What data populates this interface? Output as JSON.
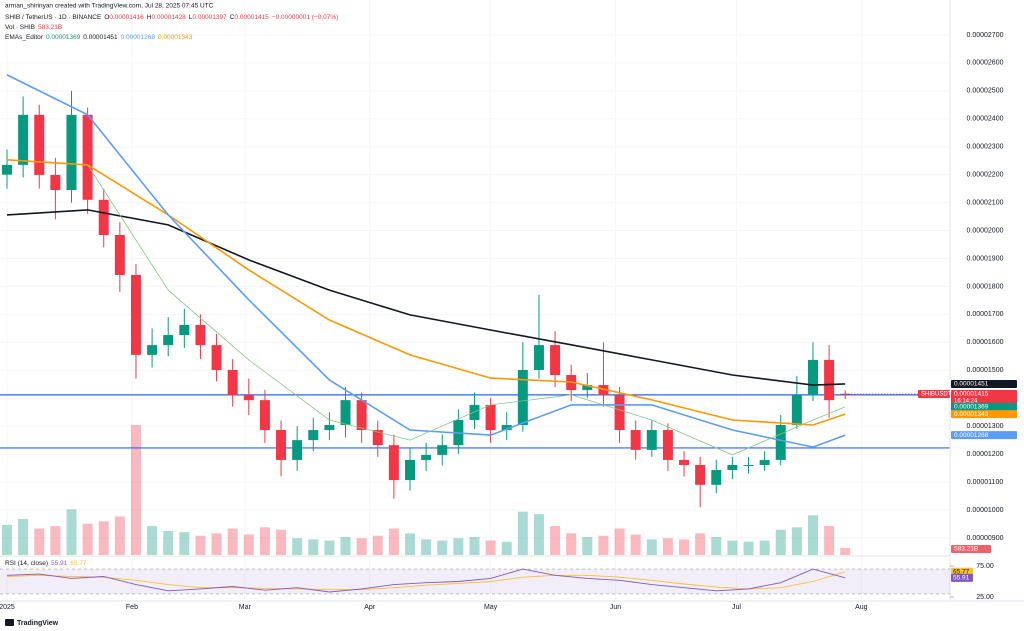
{
  "chart_data": {
    "type": "candlestick",
    "watermark_text": "arman_shirinyan created with TradingView.com, Jul 28, 2025 07:45 UTC",
    "symbol_line": "SHIB / TetherUS · 1D · BINANCE",
    "ohlc": [
      [
        "O",
        "0.00001416"
      ],
      [
        "H",
        "0.00001428"
      ],
      [
        "L",
        "0.00001397"
      ],
      [
        "C",
        "0.00001415"
      ]
    ],
    "change": "−0.00000001 (−0.07%)",
    "vol_label": "Vol · SHIB",
    "vol_value": "583.21B",
    "ema_label": "EMAs_Editor",
    "rsi_label": "RSI (14, close)",
    "footer": "TradingView",
    "up_color": "#089981",
    "down_color": "#f23645",
    "xlim": [
      -0.74,
      235
    ],
    "xticks": [
      {
        "value": 1,
        "label": "2025"
      },
      {
        "value": 32,
        "label": "Feb"
      },
      {
        "value": 60,
        "label": "Mar"
      },
      {
        "value": 91,
        "label": "Apr"
      },
      {
        "value": 121,
        "label": "May"
      },
      {
        "value": 152,
        "label": "Jun"
      },
      {
        "value": 182,
        "label": "Jul"
      },
      {
        "value": 213,
        "label": "Aug"
      }
    ],
    "ylim": [
      8.46e-06,
      2.825e-05
    ],
    "yticks": [
      {
        "value": 9e-06,
        "label": "0.00000900"
      },
      {
        "value": 1e-05,
        "label": "0.00001000"
      },
      {
        "value": 1.1e-05,
        "label": "0.00001100"
      },
      {
        "value": 1.2e-05,
        "label": "0.00001200"
      },
      {
        "value": 1.3e-05,
        "label": "0.00001300"
      },
      {
        "value": 1.4e-05,
        "label": "0.00001400"
      },
      {
        "value": 1.5e-05,
        "label": "0.00001500"
      },
      {
        "value": 1.6e-05,
        "label": "0.00001600"
      },
      {
        "value": 1.7e-05,
        "label": "0.00001700"
      },
      {
        "value": 1.8e-05,
        "label": "0.00001800"
      },
      {
        "value": 1.9e-05,
        "label": "0.00001900"
      },
      {
        "value": 2e-05,
        "label": "0.00002000"
      },
      {
        "value": 2.1e-05,
        "label": "0.00002100"
      },
      {
        "value": 2.2e-05,
        "label": "0.00002200"
      },
      {
        "value": 2.3e-05,
        "label": "0.00002300"
      },
      {
        "value": 2.4e-05,
        "label": "0.00002400"
      },
      {
        "value": 2.5e-05,
        "label": "0.00002500"
      },
      {
        "value": 2.6e-05,
        "label": "0.00002600"
      },
      {
        "value": 2.7e-05,
        "label": "0.00002700"
      }
    ],
    "x": [
      1,
      5,
      9,
      13,
      17,
      21,
      25,
      29,
      33,
      37,
      41,
      45,
      49,
      53,
      57,
      61,
      65,
      69,
      73,
      77,
      81,
      85,
      89,
      93,
      97,
      101,
      105,
      109,
      113,
      117,
      121,
      125,
      129,
      133,
      137,
      141,
      145,
      149,
      153,
      157,
      161,
      165,
      169,
      173,
      177,
      181,
      185,
      189,
      193,
      197,
      201,
      205,
      209
    ],
    "open": [
      2.2e-05,
      2.235e-05,
      2.414e-05,
      2.199e-05,
      2.145e-05,
      2.414e-05,
      2.11e-05,
      1.984e-05,
      1.841e-05,
      1.555e-05,
      1.59e-05,
      1.626e-05,
      1.662e-05,
      1.59e-05,
      1.501e-05,
      1.411e-05,
      1.393e-05,
      1.286e-05,
      1.179e-05,
      1.25e-05,
      1.286e-05,
      1.304e-05,
      1.393e-05,
      1.286e-05,
      1.232e-05,
      1.107e-05,
      1.179e-05,
      1.197e-05,
      1.232e-05,
      1.322e-05,
      1.376e-05,
      1.286e-05,
      1.304e-05,
      1.501e-05,
      1.59e-05,
      1.483e-05,
      1.429e-05,
      1.447e-05,
      1.411e-05,
      1.286e-05,
      1.215e-05,
      1.286e-05,
      1.179e-05,
      1.161e-05,
      1.09e-05,
      1.143e-05,
      1.161e-05,
      1.161e-05,
      1.179e-05,
      1.304e-05,
      1.411e-05,
      1.537e-05,
      1.416e-05
    ],
    "high": [
      2.29e-05,
      2.48e-05,
      2.45e-05,
      2.26e-05,
      2.5e-05,
      2.44e-05,
      2.15e-05,
      2.03e-05,
      1.88e-05,
      1.65e-05,
      1.69e-05,
      1.72e-05,
      1.7e-05,
      1.63e-05,
      1.54e-05,
      1.47e-05,
      1.43e-05,
      1.32e-05,
      1.3e-05,
      1.33e-05,
      1.35e-05,
      1.44e-05,
      1.42e-05,
      1.32e-05,
      1.27e-05,
      1.22e-05,
      1.24e-05,
      1.27e-05,
      1.36e-05,
      1.42e-05,
      1.4e-05,
      1.35e-05,
      1.6e-05,
      1.77e-05,
      1.64e-05,
      1.52e-05,
      1.49e-05,
      1.6e-05,
      1.44e-05,
      1.32e-05,
      1.32e-05,
      1.31e-05,
      1.21e-05,
      1.19e-05,
      1.18e-05,
      1.19e-05,
      1.19e-05,
      1.21e-05,
      1.34e-05,
      1.48e-05,
      1.6e-05,
      1.59e-05,
      1.428e-05
    ],
    "low": [
      2.15e-05,
      2.19e-05,
      2.15e-05,
      2.04e-05,
      2.1e-05,
      2.06e-05,
      1.94e-05,
      1.78e-05,
      1.47e-05,
      1.51e-05,
      1.55e-05,
      1.58e-05,
      1.54e-05,
      1.46e-05,
      1.37e-05,
      1.34e-05,
      1.24e-05,
      1.12e-05,
      1.14e-05,
      1.21e-05,
      1.25e-05,
      1.26e-05,
      1.24e-05,
      1.19e-05,
      1.04e-05,
      1.07e-05,
      1.14e-05,
      1.16e-05,
      1.2e-05,
      1.29e-05,
      1.24e-05,
      1.25e-05,
      1.28e-05,
      1.47e-05,
      1.44e-05,
      1.39e-05,
      1.4e-05,
      1.37e-05,
      1.24e-05,
      1.18e-05,
      1.19e-05,
      1.14e-05,
      1.12e-05,
      1.01e-05,
      1.06e-05,
      1.11e-05,
      1.13e-05,
      1.14e-05,
      1.16e-05,
      1.29e-05,
      1.39e-05,
      1.33e-05,
      1.397e-05
    ],
    "close": [
      2.235e-05,
      2.414e-05,
      2.199e-05,
      2.145e-05,
      2.414e-05,
      2.11e-05,
      1.984e-05,
      1.841e-05,
      1.555e-05,
      1.59e-05,
      1.626e-05,
      1.662e-05,
      1.59e-05,
      1.501e-05,
      1.411e-05,
      1.393e-05,
      1.286e-05,
      1.179e-05,
      1.25e-05,
      1.286e-05,
      1.304e-05,
      1.393e-05,
      1.286e-05,
      1.232e-05,
      1.107e-05,
      1.179e-05,
      1.197e-05,
      1.232e-05,
      1.322e-05,
      1.376e-05,
      1.286e-05,
      1.304e-05,
      1.501e-05,
      1.59e-05,
      1.483e-05,
      1.429e-05,
      1.447e-05,
      1.411e-05,
      1.286e-05,
      1.215e-05,
      1.286e-05,
      1.179e-05,
      1.161e-05,
      1.09e-05,
      1.143e-05,
      1.161e-05,
      1.161e-05,
      1.179e-05,
      1.304e-05,
      1.411e-05,
      1.537e-05,
      1.393e-05,
      1.415e-05
    ],
    "volume": [
      2500,
      3000,
      2200,
      2400,
      3800,
      2600,
      2800,
      3200,
      10800,
      2400,
      2000,
      1900,
      1600,
      1800,
      2200,
      1700,
      2300,
      2100,
      1400,
      1300,
      1200,
      1500,
      1400,
      1600,
      2200,
      1800,
      1300,
      1200,
      1400,
      1500,
      1200,
      1100,
      3600,
      3400,
      2400,
      1800,
      1500,
      1600,
      2200,
      1700,
      1300,
      1400,
      1300,
      1800,
      1500,
      1200,
      1100,
      1200,
      2100,
      2300,
      3300,
      2400,
      583.21
    ],
    "ema_series": [
      {
        "color": "#131722",
        "x": [
          1,
          21,
          41,
          61,
          81,
          101,
          121,
          141,
          161,
          181,
          201,
          209
        ],
        "values": [
          2.056e-05,
          2.074e-05,
          2.02e-05,
          1.895e-05,
          1.787e-05,
          1.698e-05,
          1.644e-05,
          1.591e-05,
          1.537e-05,
          1.483e-05,
          1.447e-05,
          1.451e-05
        ]
      },
      {
        "color": "#ff9800",
        "x": [
          1,
          21,
          41,
          61,
          81,
          101,
          121,
          141,
          161,
          181,
          201,
          209
        ],
        "values": [
          2.253e-05,
          2.235e-05,
          2.056e-05,
          1.859e-05,
          1.68e-05,
          1.555e-05,
          1.472e-05,
          1.458e-05,
          1.394e-05,
          1.322e-05,
          1.304e-05,
          1.343e-05
        ]
      },
      {
        "color": "#5b9cf6",
        "x": [
          1,
          21,
          41,
          61,
          81,
          101,
          121,
          141,
          161,
          181,
          201,
          209
        ],
        "values": [
          2.557e-05,
          2.414e-05,
          2.056e-05,
          1.752e-05,
          1.465e-05,
          1.286e-05,
          1.268e-05,
          1.376e-05,
          1.376e-05,
          1.286e-05,
          1.225e-05,
          1.268e-05
        ]
      },
      {
        "color": "#81c784",
        "x": [
          1,
          21,
          41,
          61,
          81,
          101,
          121,
          141,
          161,
          181,
          201,
          209
        ],
        "values": [
          null,
          2.235e-05,
          1.787e-05,
          1.537e-05,
          1.322e-05,
          1.25e-05,
          1.376e-05,
          1.412e-05,
          1.322e-05,
          1.197e-05,
          1.322e-05,
          1.369e-05
        ]
      }
    ],
    "hlines": [
      {
        "value": 1.412e-05,
        "color": "#2962ff"
      },
      {
        "value": 1.222e-05,
        "color": "#2962ff"
      }
    ],
    "symbol_tag": "SHIBUSDT",
    "countdown": "16:14:24",
    "badges": [
      {
        "value": 1.451e-05,
        "label": "0.00001451",
        "color": "#131722"
      },
      {
        "value": 1.415e-05,
        "label": "0.00001415",
        "color": "#f23645"
      },
      {
        "value": 1.369e-05,
        "label": "0.00001369",
        "color": "#089981"
      },
      {
        "value": 1.343e-05,
        "label": "0.00001343",
        "color": "#ff9800"
      },
      {
        "value": 1.268e-05,
        "label": "0.00001268",
        "color": "#5b9cf6"
      }
    ],
    "volume_badge": "583.21B",
    "rsi": {
      "ylim": [
        25,
        75
      ],
      "yticks": [
        {
          "value": 75,
          "label": "75.00"
        },
        {
          "value": 25,
          "label": "25.00"
        }
      ],
      "bands": [
        70,
        30
      ],
      "x": [
        1,
        9,
        17,
        25,
        33,
        41,
        49,
        57,
        65,
        73,
        81,
        89,
        97,
        105,
        113,
        121,
        129,
        137,
        145,
        153,
        161,
        169,
        177,
        185,
        193,
        201,
        209
      ],
      "values": [
        60,
        62,
        55,
        58,
        45,
        35,
        38,
        42,
        36,
        40,
        33,
        38,
        45,
        48,
        50,
        55,
        70,
        60,
        55,
        52,
        45,
        40,
        35,
        38,
        48,
        70,
        55.91
      ],
      "color": "#7e57c2",
      "ma_values": [
        58,
        60,
        58,
        57,
        52,
        45,
        40,
        40,
        39,
        38,
        37,
        37,
        40,
        44,
        47,
        50,
        57,
        60,
        60,
        57,
        52,
        46,
        41,
        38,
        40,
        50,
        65.77
      ],
      "ma_color": "#fbc02d"
    }
  }
}
